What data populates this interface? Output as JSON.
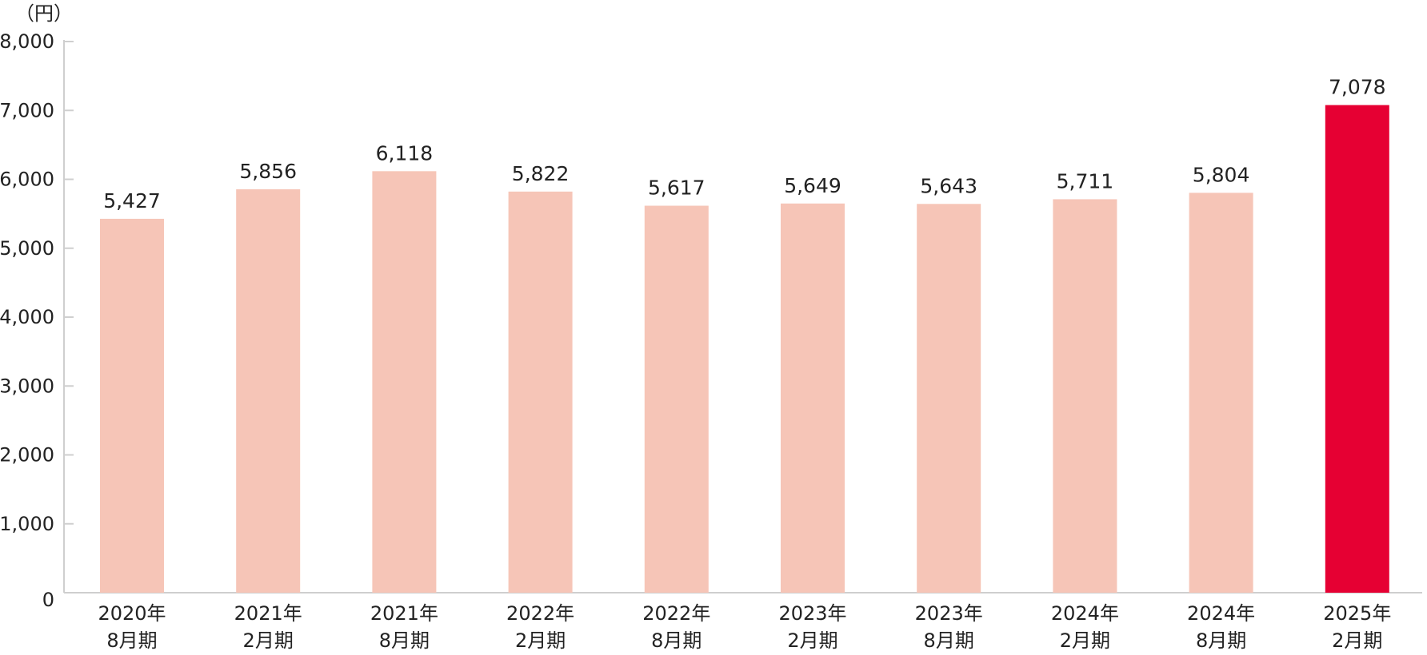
{
  "chart_data": {
    "type": "bar",
    "unit_label": "（円）",
    "categories": [
      [
        "2020年",
        "8月期"
      ],
      [
        "2021年",
        "2月期"
      ],
      [
        "2021年",
        "8月期"
      ],
      [
        "2022年",
        "2月期"
      ],
      [
        "2022年",
        "8月期"
      ],
      [
        "2023年",
        "2月期"
      ],
      [
        "2023年",
        "8月期"
      ],
      [
        "2024年",
        "2月期"
      ],
      [
        "2024年",
        "8月期"
      ],
      [
        "2025年",
        "2月期"
      ]
    ],
    "values": [
      5427,
      5856,
      6118,
      5822,
      5617,
      5649,
      5643,
      5711,
      5804,
      7078
    ],
    "value_labels": [
      "5,427",
      "5,856",
      "6,118",
      "5,822",
      "5,617",
      "5,649",
      "5,643",
      "5,711",
      "5,804",
      "7,078"
    ],
    "highlight_index": 9,
    "ylim": [
      0,
      8000
    ],
    "y_ticks": [
      0,
      1000,
      2000,
      3000,
      4000,
      5000,
      6000,
      7000,
      8000
    ],
    "y_tick_labels": [
      "0",
      "1,000",
      "2,000",
      "3,000",
      "4,000",
      "5,000",
      "6,000",
      "7,000",
      "8,000"
    ],
    "grid": false,
    "colors": {
      "bar": "#F6C5B7",
      "highlight_bar": "#E60033",
      "highlight_label": "#E60033",
      "axis": "#cfcfcf",
      "text": "#222222"
    }
  }
}
